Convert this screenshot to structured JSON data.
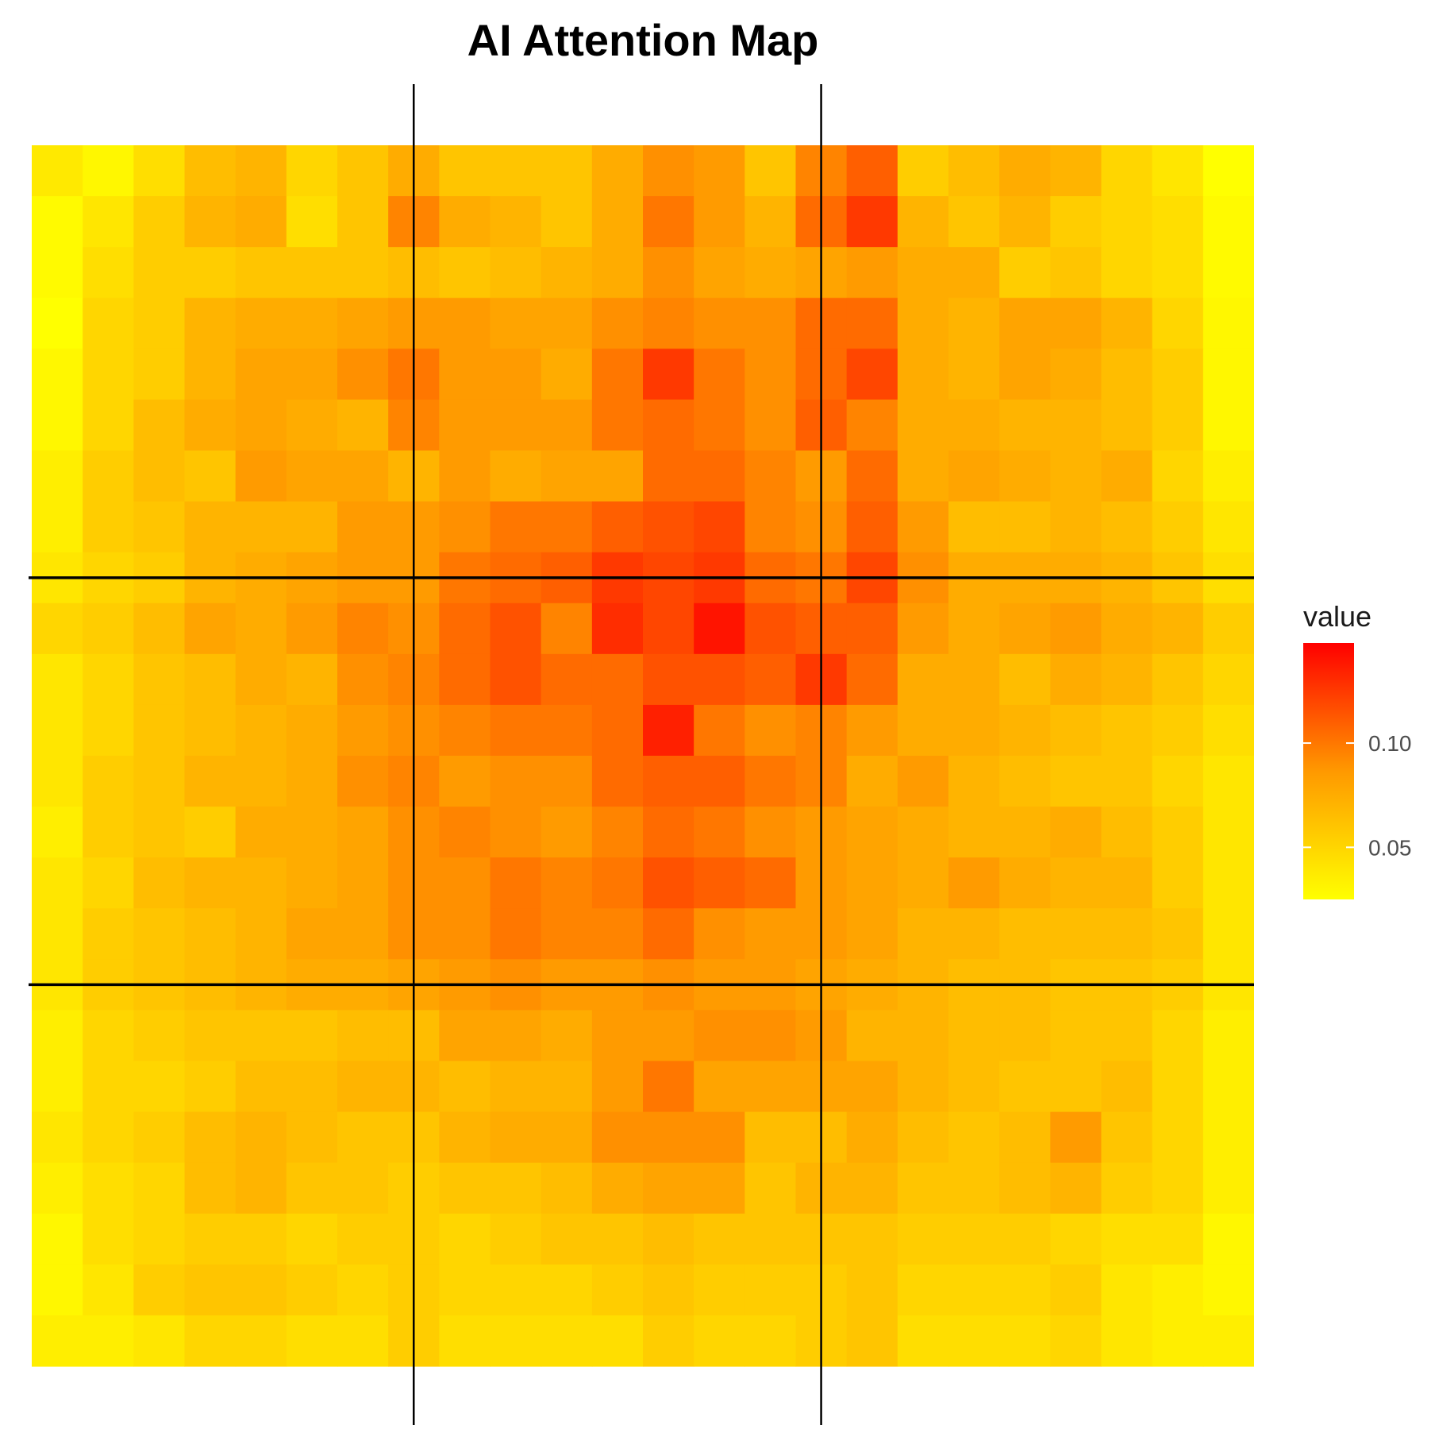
{
  "chart_data": {
    "type": "heatmap",
    "title": "AI Attention Map",
    "rows": 24,
    "cols": 24,
    "values": [
      [
        0.038,
        0.03,
        0.045,
        0.065,
        0.07,
        0.05,
        0.06,
        0.075,
        0.06,
        0.06,
        0.06,
        0.075,
        0.09,
        0.085,
        0.06,
        0.095,
        0.11,
        0.055,
        0.065,
        0.075,
        0.07,
        0.05,
        0.04,
        0.025
      ],
      [
        0.028,
        0.04,
        0.055,
        0.07,
        0.075,
        0.045,
        0.06,
        0.095,
        0.075,
        0.07,
        0.06,
        0.075,
        0.1,
        0.085,
        0.07,
        0.105,
        0.125,
        0.07,
        0.06,
        0.07,
        0.055,
        0.05,
        0.045,
        0.028
      ],
      [
        0.028,
        0.045,
        0.055,
        0.055,
        0.06,
        0.06,
        0.06,
        0.065,
        0.06,
        0.065,
        0.07,
        0.075,
        0.09,
        0.08,
        0.075,
        0.08,
        0.085,
        0.075,
        0.075,
        0.055,
        0.06,
        0.05,
        0.045,
        0.028
      ],
      [
        0.025,
        0.05,
        0.055,
        0.07,
        0.075,
        0.075,
        0.08,
        0.085,
        0.085,
        0.08,
        0.08,
        0.09,
        0.095,
        0.09,
        0.09,
        0.105,
        0.105,
        0.075,
        0.07,
        0.08,
        0.08,
        0.07,
        0.05,
        0.03
      ],
      [
        0.03,
        0.05,
        0.055,
        0.07,
        0.08,
        0.08,
        0.09,
        0.1,
        0.085,
        0.085,
        0.075,
        0.1,
        0.125,
        0.1,
        0.09,
        0.105,
        0.12,
        0.075,
        0.07,
        0.08,
        0.075,
        0.065,
        0.055,
        0.03
      ],
      [
        0.03,
        0.05,
        0.065,
        0.075,
        0.08,
        0.075,
        0.07,
        0.095,
        0.085,
        0.085,
        0.085,
        0.1,
        0.105,
        0.1,
        0.09,
        0.11,
        0.095,
        0.075,
        0.075,
        0.07,
        0.07,
        0.065,
        0.055,
        0.03
      ],
      [
        0.035,
        0.055,
        0.065,
        0.06,
        0.085,
        0.08,
        0.08,
        0.07,
        0.085,
        0.075,
        0.08,
        0.08,
        0.105,
        0.105,
        0.095,
        0.085,
        0.105,
        0.075,
        0.08,
        0.075,
        0.07,
        0.075,
        0.05,
        0.035
      ],
      [
        0.035,
        0.055,
        0.06,
        0.07,
        0.07,
        0.07,
        0.085,
        0.085,
        0.09,
        0.1,
        0.1,
        0.11,
        0.115,
        0.12,
        0.095,
        0.09,
        0.11,
        0.085,
        0.065,
        0.065,
        0.07,
        0.065,
        0.055,
        0.04
      ],
      [
        0.04,
        0.05,
        0.055,
        0.07,
        0.075,
        0.08,
        0.085,
        0.085,
        0.1,
        0.105,
        0.11,
        0.125,
        0.12,
        0.125,
        0.105,
        0.1,
        0.12,
        0.09,
        0.075,
        0.075,
        0.075,
        0.07,
        0.06,
        0.045
      ],
      [
        0.05,
        0.055,
        0.065,
        0.08,
        0.075,
        0.085,
        0.095,
        0.09,
        0.105,
        0.115,
        0.095,
        0.13,
        0.12,
        0.14,
        0.115,
        0.11,
        0.11,
        0.085,
        0.075,
        0.08,
        0.085,
        0.075,
        0.07,
        0.055
      ],
      [
        0.04,
        0.05,
        0.06,
        0.065,
        0.075,
        0.07,
        0.09,
        0.095,
        0.105,
        0.115,
        0.105,
        0.105,
        0.115,
        0.115,
        0.11,
        0.125,
        0.105,
        0.075,
        0.075,
        0.065,
        0.075,
        0.07,
        0.06,
        0.05
      ],
      [
        0.04,
        0.05,
        0.06,
        0.065,
        0.07,
        0.075,
        0.085,
        0.09,
        0.095,
        0.1,
        0.1,
        0.105,
        0.135,
        0.1,
        0.09,
        0.095,
        0.085,
        0.075,
        0.075,
        0.07,
        0.065,
        0.06,
        0.055,
        0.045
      ],
      [
        0.04,
        0.055,
        0.06,
        0.07,
        0.07,
        0.075,
        0.09,
        0.095,
        0.085,
        0.09,
        0.09,
        0.105,
        0.11,
        0.11,
        0.1,
        0.095,
        0.075,
        0.085,
        0.07,
        0.065,
        0.06,
        0.06,
        0.05,
        0.04
      ],
      [
        0.035,
        0.055,
        0.06,
        0.055,
        0.075,
        0.075,
        0.08,
        0.09,
        0.095,
        0.09,
        0.085,
        0.095,
        0.105,
        0.1,
        0.09,
        0.085,
        0.08,
        0.075,
        0.07,
        0.07,
        0.075,
        0.065,
        0.055,
        0.04
      ],
      [
        0.04,
        0.05,
        0.065,
        0.07,
        0.07,
        0.075,
        0.08,
        0.09,
        0.09,
        0.1,
        0.095,
        0.1,
        0.115,
        0.11,
        0.105,
        0.085,
        0.08,
        0.075,
        0.085,
        0.075,
        0.07,
        0.07,
        0.055,
        0.04
      ],
      [
        0.04,
        0.055,
        0.06,
        0.065,
        0.07,
        0.08,
        0.08,
        0.09,
        0.09,
        0.1,
        0.095,
        0.095,
        0.105,
        0.09,
        0.085,
        0.085,
        0.08,
        0.07,
        0.07,
        0.065,
        0.065,
        0.065,
        0.06,
        0.04
      ],
      [
        0.04,
        0.055,
        0.06,
        0.065,
        0.07,
        0.075,
        0.075,
        0.08,
        0.085,
        0.09,
        0.085,
        0.085,
        0.09,
        0.085,
        0.085,
        0.08,
        0.075,
        0.07,
        0.065,
        0.065,
        0.06,
        0.06,
        0.055,
        0.04
      ],
      [
        0.035,
        0.05,
        0.055,
        0.06,
        0.06,
        0.06,
        0.065,
        0.065,
        0.08,
        0.08,
        0.075,
        0.085,
        0.085,
        0.09,
        0.09,
        0.085,
        0.07,
        0.07,
        0.065,
        0.065,
        0.06,
        0.06,
        0.05,
        0.035
      ],
      [
        0.035,
        0.05,
        0.05,
        0.055,
        0.065,
        0.065,
        0.07,
        0.07,
        0.065,
        0.07,
        0.07,
        0.085,
        0.1,
        0.08,
        0.08,
        0.08,
        0.08,
        0.07,
        0.065,
        0.06,
        0.06,
        0.065,
        0.05,
        0.035
      ],
      [
        0.04,
        0.05,
        0.055,
        0.065,
        0.07,
        0.065,
        0.06,
        0.06,
        0.07,
        0.075,
        0.075,
        0.09,
        0.09,
        0.09,
        0.065,
        0.065,
        0.075,
        0.065,
        0.06,
        0.065,
        0.085,
        0.06,
        0.05,
        0.035
      ],
      [
        0.035,
        0.045,
        0.05,
        0.065,
        0.07,
        0.06,
        0.06,
        0.055,
        0.06,
        0.06,
        0.065,
        0.075,
        0.08,
        0.08,
        0.06,
        0.07,
        0.07,
        0.06,
        0.06,
        0.065,
        0.07,
        0.055,
        0.05,
        0.035
      ],
      [
        0.03,
        0.045,
        0.05,
        0.055,
        0.055,
        0.05,
        0.055,
        0.055,
        0.05,
        0.055,
        0.06,
        0.06,
        0.065,
        0.06,
        0.06,
        0.06,
        0.06,
        0.055,
        0.055,
        0.055,
        0.05,
        0.045,
        0.045,
        0.03
      ],
      [
        0.03,
        0.04,
        0.055,
        0.06,
        0.06,
        0.055,
        0.05,
        0.055,
        0.05,
        0.05,
        0.05,
        0.055,
        0.06,
        0.055,
        0.055,
        0.055,
        0.06,
        0.05,
        0.05,
        0.05,
        0.055,
        0.04,
        0.035,
        0.03
      ],
      [
        0.035,
        0.035,
        0.04,
        0.05,
        0.05,
        0.045,
        0.045,
        0.055,
        0.045,
        0.045,
        0.045,
        0.045,
        0.055,
        0.05,
        0.05,
        0.055,
        0.06,
        0.045,
        0.045,
        0.045,
        0.05,
        0.04,
        0.035,
        0.035
      ]
    ],
    "color_scale": {
      "low": "#ffff00",
      "mid": "#ff9900",
      "high": "#ff0000",
      "min": 0.025,
      "max": 0.148
    },
    "reference_lines": {
      "vertical_at_col": [
        7.5,
        15.5
      ],
      "horizontal_at_row": [
        8.5,
        16.5
      ]
    },
    "legend": {
      "title": "value",
      "ticks": [
        0.05,
        0.1
      ],
      "tick_labels": [
        "0.05",
        "0.10"
      ],
      "placement": "right"
    },
    "grid": false
  }
}
